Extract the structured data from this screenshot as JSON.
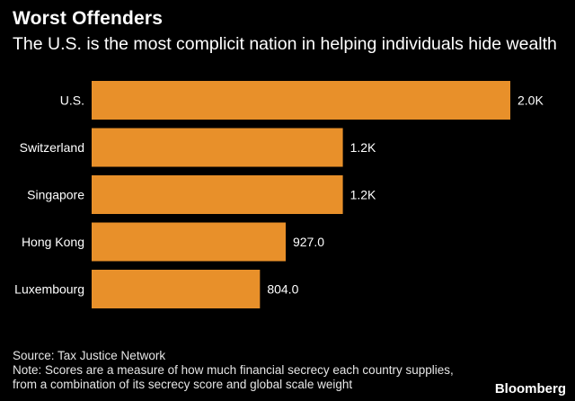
{
  "header": {
    "title": "Worst Offenders",
    "subtitle": "The U.S. is the most complicit nation in helping individuals hide wealth"
  },
  "chart_data": {
    "type": "bar",
    "orientation": "horizontal",
    "categories": [
      "U.S.",
      "Switzerland",
      "Singapore",
      "Hong Kong",
      "Luxembourg"
    ],
    "values": [
      2000,
      1200,
      1200,
      927,
      804
    ],
    "value_labels": [
      "2.0K",
      "1.2K",
      "1.2K",
      "927.0",
      "804.0"
    ],
    "title": "Worst Offenders",
    "subtitle": "The U.S. is the most complicit nation in helping individuals hide wealth",
    "xlabel": "",
    "ylabel": "",
    "xlim": [
      0,
      2000
    ],
    "grid": false,
    "legend": "none",
    "bar_color": "#e8902a"
  },
  "footer": {
    "source": "Source: Tax Justice Network",
    "note_line1": "Note: Scores are a measure of how much financial secrecy each country supplies,",
    "note_line2": "from a combination of its secrecy score and global scale weight",
    "brand": "Bloomberg"
  },
  "colors": {
    "background": "#000000",
    "text": "#ffffff",
    "bar": "#e8902a"
  }
}
